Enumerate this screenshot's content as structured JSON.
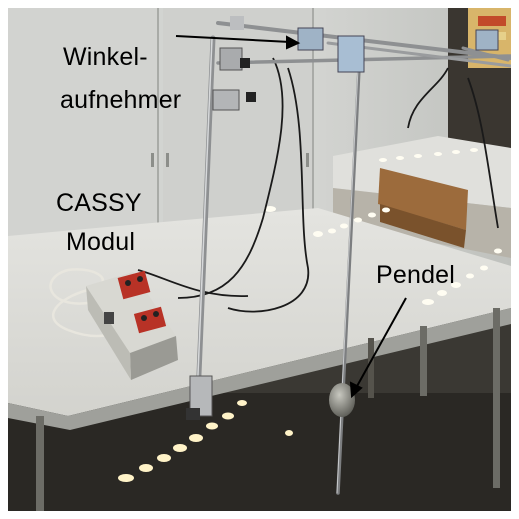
{
  "labels": {
    "winkel_line1": "Winkel-",
    "winkel_line2": "aufnehmer",
    "cassy_line1": "CASSY",
    "cassy_line2": "Modul",
    "pendel": "Pendel"
  }
}
